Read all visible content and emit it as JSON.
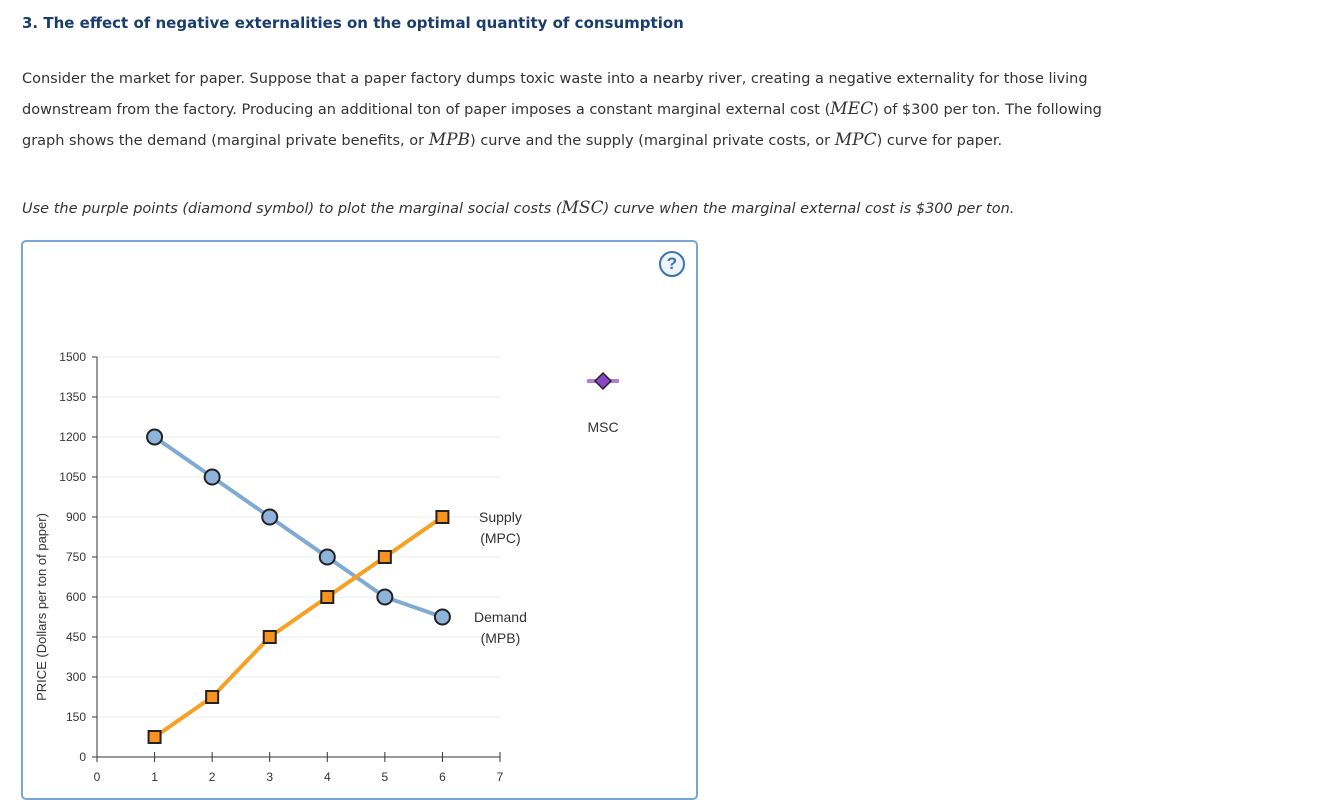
{
  "question": {
    "title": "3. The effect of negative externalities on the optimal quantity of consumption",
    "p1": "Consider the market for paper. Suppose that a paper factory dumps toxic waste into a nearby river, creating a negative externality for those living",
    "p2a": "downstream from the factory. Producing an additional ton of paper imposes a constant marginal external cost (",
    "p2b": "MEC",
    "p2c": ") of $300 per ton. The following",
    "p3a": "graph shows the demand (marginal private benefits, or ",
    "p3b": "MPB",
    "p3c": ") curve and the supply (marginal private costs, or ",
    "p3d": "MPC",
    "p3e": ") curve for paper.",
    "instr_a": "Use the purple points (diamond symbol) to plot the marginal social costs (",
    "instr_b": "MSC",
    "instr_c": ") curve when the marginal external cost is $300 per ton."
  },
  "help_label": "?",
  "colors": {
    "demand": "#7eaad4",
    "supply": "#f7a021",
    "msc": "#b07fd6",
    "demand_fill": "#8fb4dc",
    "supply_fill": "#f7931e",
    "msc_fill": "#8e44c7"
  },
  "chart_data": {
    "type": "line",
    "xlabel": "",
    "ylabel": "PRICE (Dollars per ton of paper)",
    "xlim": [
      0,
      7
    ],
    "ylim": [
      0,
      1500
    ],
    "xticks": [
      0,
      1,
      2,
      3,
      4,
      5,
      6,
      7
    ],
    "yticks": [
      0,
      150,
      300,
      450,
      600,
      750,
      900,
      1050,
      1200,
      1350,
      1500
    ],
    "grid": true,
    "series": [
      {
        "name": "Demand (MPB)",
        "label_line1": "Demand",
        "label_line2": "(MPB)",
        "marker": "circle",
        "x": [
          1,
          2,
          3,
          4,
          5,
          6
        ],
        "values": [
          1200,
          1050,
          900,
          750,
          600,
          525
        ]
      },
      {
        "name": "Supply (MPC)",
        "label_line1": "Supply",
        "label_line2": "(MPC)",
        "marker": "square",
        "x": [
          1,
          2,
          3,
          4,
          5,
          6
        ],
        "values": [
          75,
          225,
          450,
          600,
          750,
          900
        ]
      }
    ],
    "tools": [
      {
        "name": "MSC",
        "marker": "diamond"
      }
    ]
  }
}
